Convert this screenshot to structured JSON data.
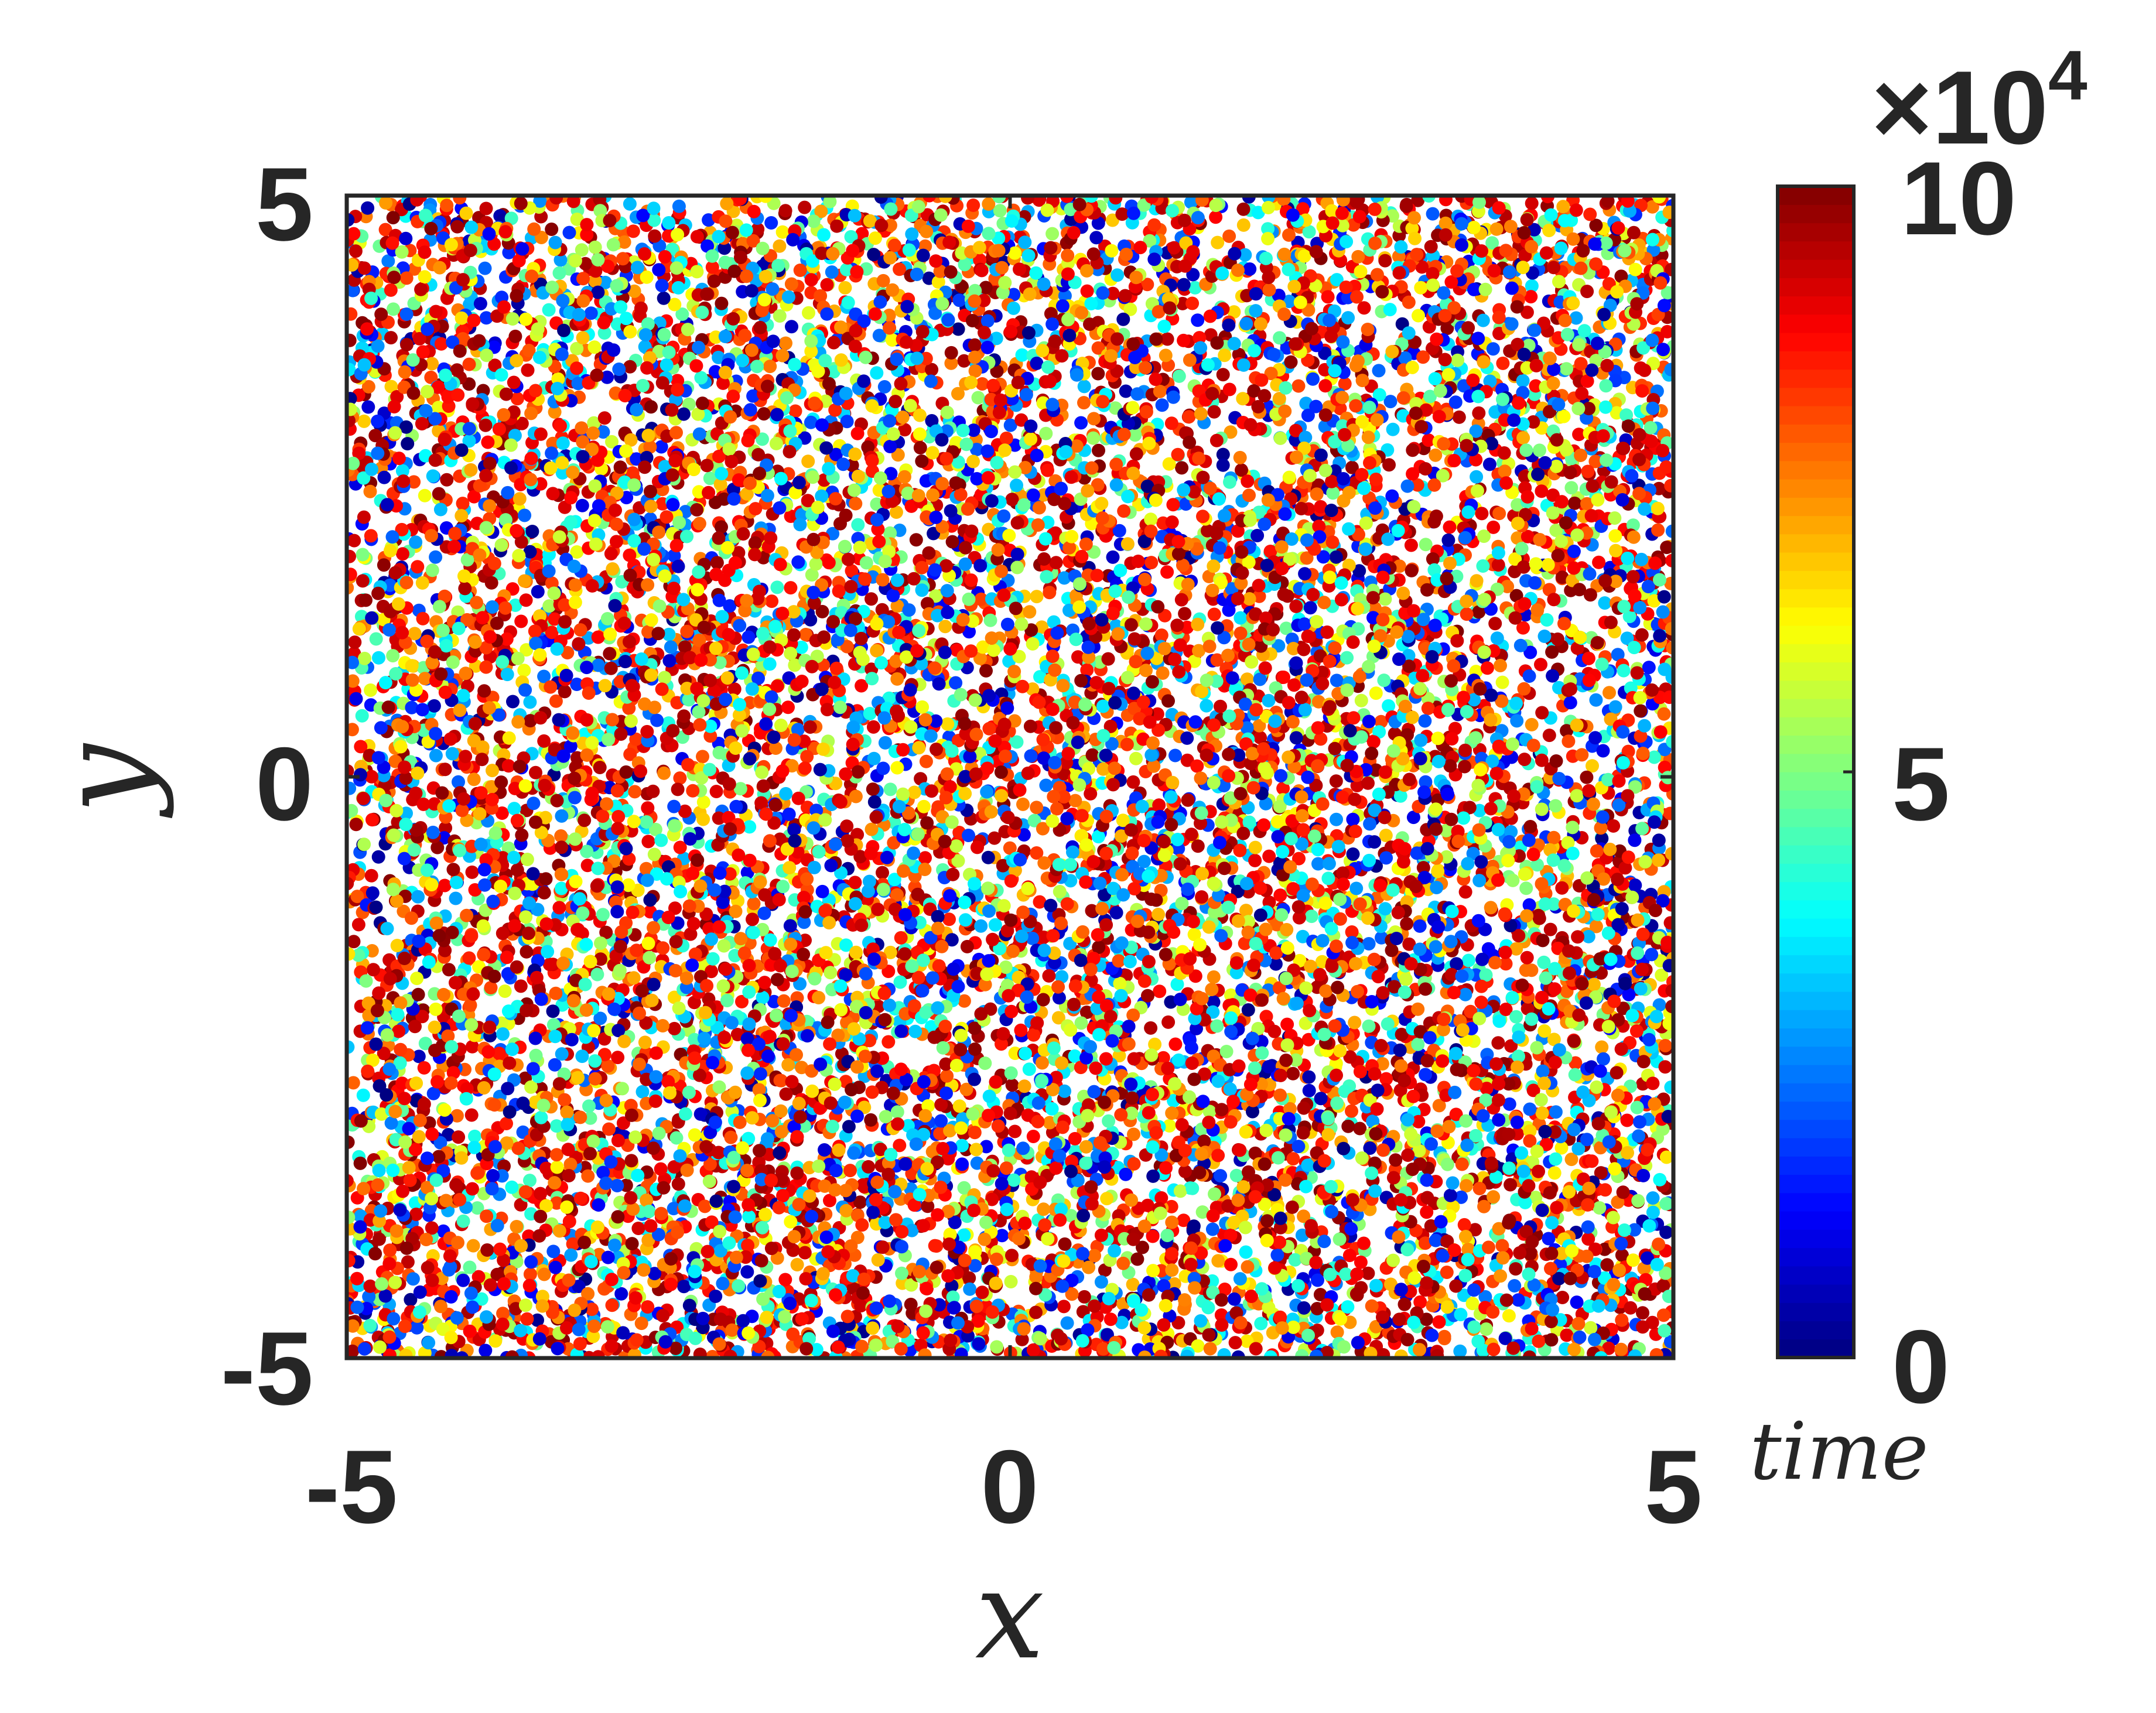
{
  "chart_data": {
    "type": "scatter",
    "title": "",
    "xlabel": "x",
    "ylabel": "y",
    "xlim": [
      -5,
      5
    ],
    "ylim": [
      -5,
      5
    ],
    "x_ticks": [
      "-5",
      "0",
      "5"
    ],
    "y_ticks": [
      "-5",
      "0",
      "5"
    ],
    "grid": false,
    "legend": "none",
    "distribution": "uniform random points filling the square [-5,5] x [-5,5]",
    "approx_point_count": 14000,
    "color_variable": "time",
    "colorbar": {
      "label": "time",
      "colormap": "jet",
      "range": [
        0,
        100000
      ],
      "ticks": [
        "0",
        "5",
        "10"
      ],
      "exponent_label": "×10",
      "exponent": "4"
    },
    "time_distribution": "skewed toward late times: red and orange dominate, yellow and cyan frequent, blue sparse"
  }
}
